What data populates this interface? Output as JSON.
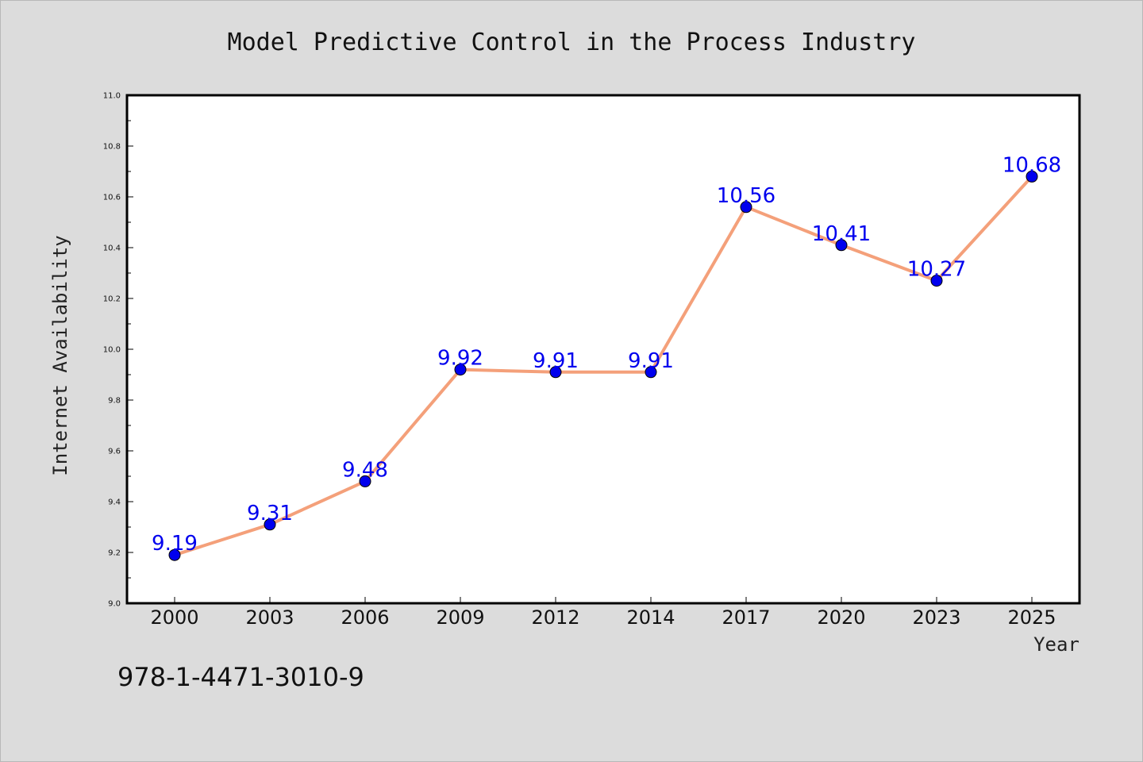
{
  "chart_data": {
    "type": "line",
    "title": "Model Predictive Control in the Process Industry",
    "xlabel": "Year",
    "ylabel": "Internet Availability",
    "categories": [
      "2000",
      "2003",
      "2006",
      "2009",
      "2012",
      "2014",
      "2017",
      "2020",
      "2023",
      "2025"
    ],
    "series": [
      {
        "values": [
          9.19,
          9.31,
          9.48,
          9.92,
          9.91,
          9.91,
          10.56,
          10.41,
          10.27,
          10.68
        ],
        "data_labels": [
          "9.19",
          "9.31",
          "9.48",
          "9.92",
          "9.91",
          "9.91",
          "10.56",
          "10.41",
          "10.27",
          "10.68"
        ],
        "line_color": "#f4a07a",
        "marker_color": "#0000ee",
        "label_color": "#0000ee"
      }
    ],
    "ylim": [
      9.0,
      11.0
    ],
    "yticks": [
      "9.0",
      "9.2",
      "9.4",
      "9.6",
      "9.8",
      "10.0",
      "10.2",
      "10.4",
      "10.6",
      "10.8",
      "11.0"
    ],
    "grid": false,
    "legend": "none",
    "background": "#ffffff"
  },
  "footer": {
    "isbn": "978-1-4471-3010-9"
  }
}
